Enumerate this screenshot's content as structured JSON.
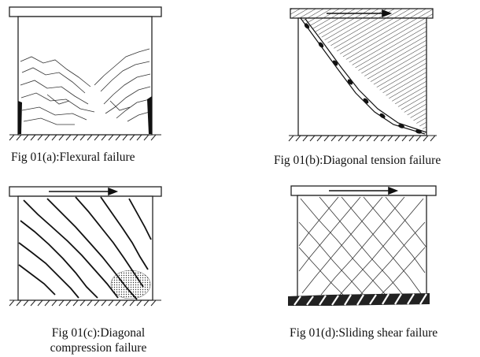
{
  "figures": [
    {
      "id": "a",
      "caption": "Fig 01(a):Flexural failure",
      "mode": "flexural"
    },
    {
      "id": "b",
      "caption": "Fig 01(b):Diagonal tension failure",
      "mode": "diagonal-tension",
      "load_arrow": true
    },
    {
      "id": "c",
      "caption_lines": [
        "Fig 01(c):Diagonal",
        "compression failure"
      ],
      "mode": "diagonal-compression",
      "load_arrow": true
    },
    {
      "id": "d",
      "caption": "Fig 01(d):Sliding shear failure",
      "mode": "sliding-shear",
      "load_arrow": true
    }
  ]
}
